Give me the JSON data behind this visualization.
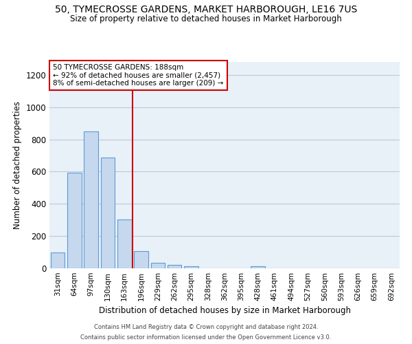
{
  "title": "50, TYMECROSSE GARDENS, MARKET HARBOROUGH, LE16 7US",
  "subtitle": "Size of property relative to detached houses in Market Harborough",
  "xlabel": "Distribution of detached houses by size in Market Harborough",
  "ylabel": "Number of detached properties",
  "bar_labels": [
    "31sqm",
    "64sqm",
    "97sqm",
    "130sqm",
    "163sqm",
    "196sqm",
    "229sqm",
    "262sqm",
    "295sqm",
    "328sqm",
    "362sqm",
    "395sqm",
    "428sqm",
    "461sqm",
    "494sqm",
    "527sqm",
    "560sqm",
    "593sqm",
    "626sqm",
    "659sqm",
    "692sqm"
  ],
  "bar_values": [
    100,
    595,
    850,
    685,
    305,
    105,
    33,
    22,
    12,
    0,
    0,
    0,
    12,
    0,
    0,
    0,
    0,
    0,
    0,
    0,
    0
  ],
  "bar_color": "#c5d8ed",
  "bar_edge_color": "#5b9bd5",
  "highlight_line_color": "#cc0000",
  "annotation_text": "50 TYMECROSSE GARDENS: 188sqm\n← 92% of detached houses are smaller (2,457)\n8% of semi-detached houses are larger (209) →",
  "annotation_box_color": "#cc0000",
  "annotation_bg_color": "#ffffff",
  "ylim": [
    0,
    1280
  ],
  "yticks": [
    0,
    200,
    400,
    600,
    800,
    1000,
    1200
  ],
  "footer1": "Contains HM Land Registry data © Crown copyright and database right 2024.",
  "footer2": "Contains public sector information licensed under the Open Government Licence v3.0.",
  "background_color": "#ffffff",
  "plot_bg_color": "#e8f0f8",
  "grid_color": "#c0c8d8"
}
